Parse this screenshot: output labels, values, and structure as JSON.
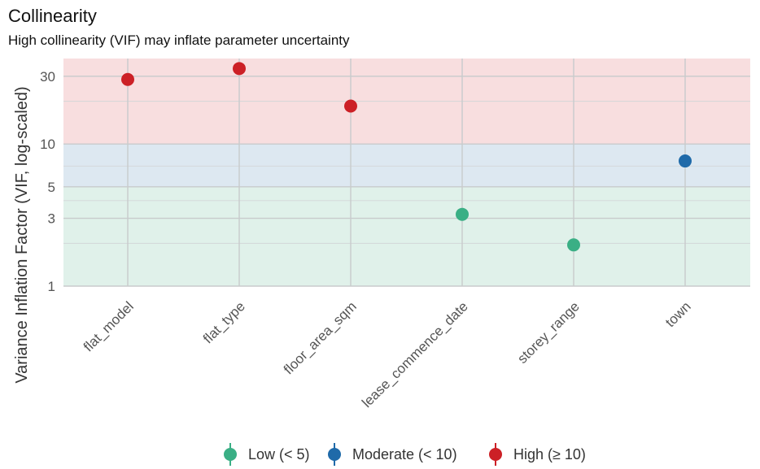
{
  "chart_data": {
    "type": "scatter",
    "title": "Collinearity",
    "subtitle": "High collinearity (VIF) may inflate parameter uncertainty",
    "xlabel": "",
    "ylabel": "Variance Inflation Factor (VIF, log-scaled)",
    "y_scale": "log",
    "ylim": [
      1,
      40
    ],
    "y_ticks": [
      1,
      3,
      5,
      10,
      30
    ],
    "grid": true,
    "categories": [
      "flat_model",
      "flat_type",
      "floor_area_sqm",
      "lease_commence_date",
      "storey_range",
      "town"
    ],
    "values": [
      28.5,
      34,
      18.5,
      3.2,
      1.95,
      7.6
    ],
    "groups": [
      "High (≥ 10)",
      "High (≥ 10)",
      "High (≥ 10)",
      "Low (< 5)",
      "Low (< 5)",
      "Moderate (< 10)"
    ],
    "bands": [
      {
        "name": "Low (< 5)",
        "from": 1,
        "to": 5,
        "color": "#e0f1ea"
      },
      {
        "name": "Moderate (< 10)",
        "from": 5,
        "to": 10,
        "color": "#dde8f1"
      },
      {
        "name": "High (≥ 10)",
        "from": 10,
        "to": 40,
        "color": "#f8dedf"
      }
    ],
    "legend": {
      "position": "bottom",
      "entries": [
        {
          "label": "Low (< 5)",
          "color": "#3aaf85"
        },
        {
          "label": "Moderate (< 10)",
          "color": "#1f6aa9"
        },
        {
          "label": "High (≥ 10)",
          "color": "#cc2026"
        }
      ]
    }
  }
}
